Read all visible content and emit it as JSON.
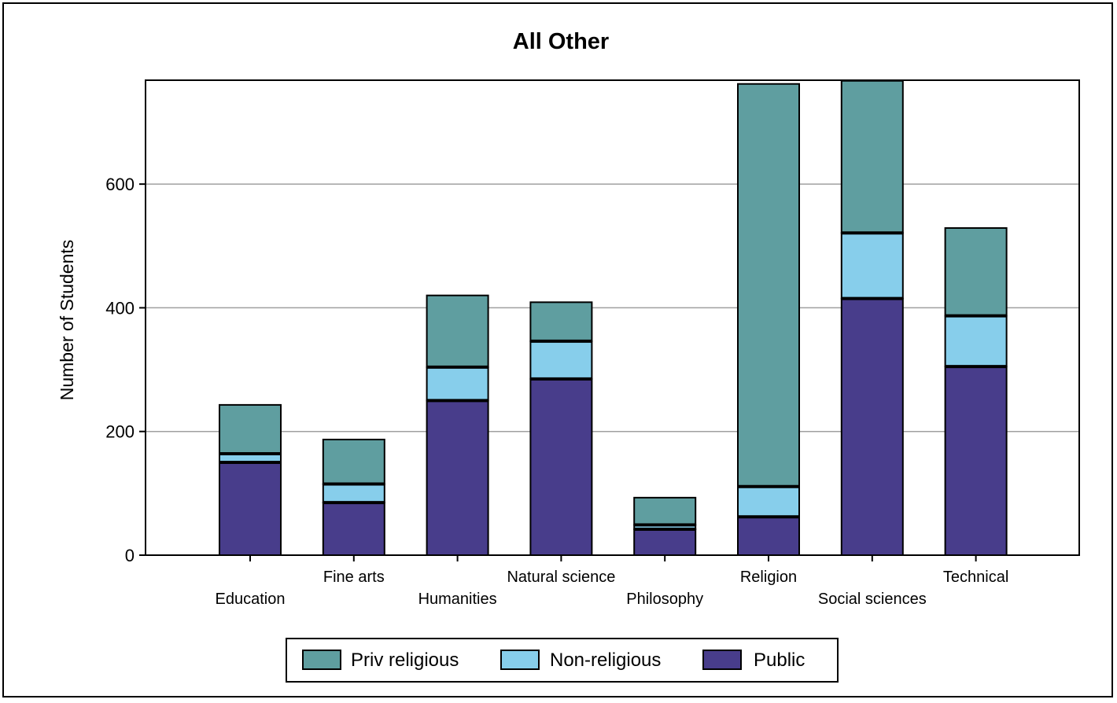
{
  "chart_data": {
    "type": "bar",
    "stacked": true,
    "title": "All Other",
    "xlabel": "",
    "ylabel": "Number of Students",
    "ylim": [
      0,
      768
    ],
    "yticks": [
      0,
      200,
      400,
      600
    ],
    "grid": true,
    "legend_position": "bottom",
    "categories": [
      "Education",
      "Fine arts",
      "Humanities",
      "Natural science",
      "Philosophy",
      "Religion",
      "Social sciences",
      "Technical"
    ],
    "series": [
      {
        "name": "Public",
        "color": "#483D8B",
        "values": [
          150,
          85,
          250,
          285,
          42,
          62,
          415,
          305
        ]
      },
      {
        "name": "Non-religious",
        "color": "#87CEEB",
        "values": [
          14,
          30,
          54,
          61,
          7,
          49,
          106,
          82
        ]
      },
      {
        "name": "Priv religious",
        "color": "#5F9EA0",
        "values": [
          79,
          72,
          116,
          63,
          44,
          651,
          246,
          142
        ]
      }
    ],
    "legend_order": [
      "Priv religious",
      "Non-religious",
      "Public"
    ]
  }
}
